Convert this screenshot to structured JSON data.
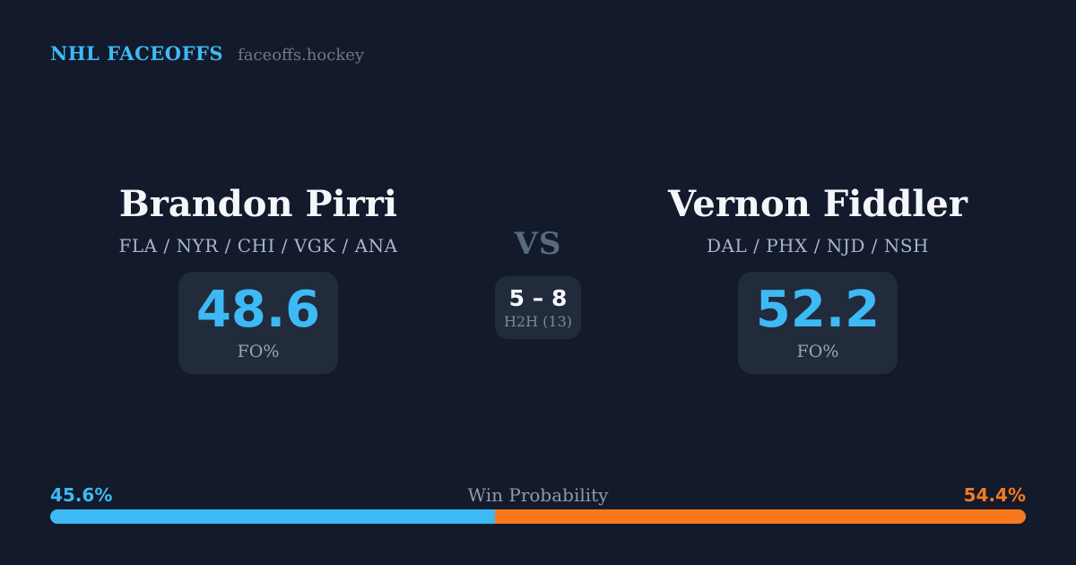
{
  "brand": {
    "title": "NHL FACEOFFS",
    "domain": "faceoffs.hockey"
  },
  "players": [
    {
      "name": "Brandon Pirri",
      "teams": "FLA / NYR / CHI / VGK / ANA",
      "fo_pct": "48.6",
      "fo_label": "FO%"
    },
    {
      "name": "Vernon Fiddler",
      "teams": "DAL / PHX / NJD / NSH",
      "fo_pct": "52.2",
      "fo_label": "FO%"
    }
  ],
  "versus": {
    "label": "VS",
    "h2h_score": "5 – 8",
    "h2h_label": "H2H (13)"
  },
  "win_probability": {
    "label": "Win Probability",
    "left_pct_text": "45.6%",
    "right_pct_text": "54.4%",
    "left_value": 45.6,
    "right_value": 54.4
  },
  "colors": {
    "background": "#121a2b",
    "card_background": "#212b3c",
    "accent_blue": "#3dbaf5",
    "accent_orange": "#f8791d",
    "text_primary": "#f4f6fa",
    "text_secondary": "#a9b5c8",
    "text_muted": "#8f99aa"
  }
}
